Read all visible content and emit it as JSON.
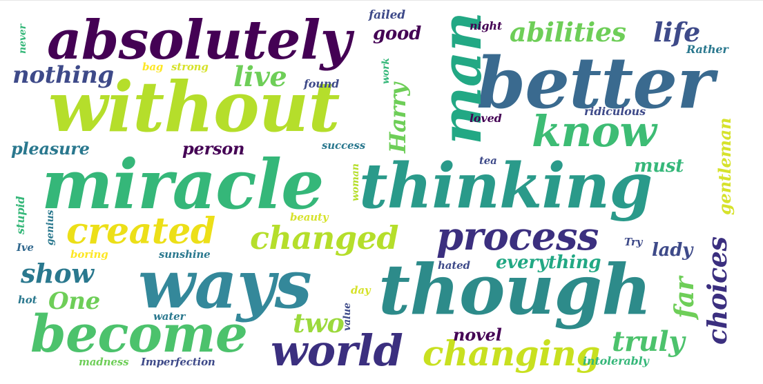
{
  "colors": {
    "dark_purple": "#440154",
    "indigo": "#3b2f7f",
    "slate_blue": "#3e4a89",
    "steel_blue": "#31688e",
    "teal_blue": "#26828e",
    "teal": "#1f9e89",
    "green_teal": "#35b779",
    "green": "#6ece58",
    "lime": "#b5de2b",
    "yellow": "#fde725"
  },
  "words": [
    {
      "text": "absolutely"
    },
    {
      "text": "without"
    },
    {
      "text": "miracle"
    },
    {
      "text": "thinking"
    },
    {
      "text": "better"
    },
    {
      "text": "though"
    },
    {
      "text": "ways"
    },
    {
      "text": "become"
    },
    {
      "text": "man"
    },
    {
      "text": "world"
    },
    {
      "text": "changing"
    },
    {
      "text": "created"
    },
    {
      "text": "changed"
    },
    {
      "text": "process"
    },
    {
      "text": "know"
    },
    {
      "text": "abilities"
    },
    {
      "text": "life"
    },
    {
      "text": "nothing"
    },
    {
      "text": "live"
    },
    {
      "text": "good"
    },
    {
      "text": "Harry"
    },
    {
      "text": "pleasure"
    },
    {
      "text": "person"
    },
    {
      "text": "show"
    },
    {
      "text": "One"
    },
    {
      "text": "two"
    },
    {
      "text": "truly"
    },
    {
      "text": "choices"
    },
    {
      "text": "far"
    },
    {
      "text": "everything"
    },
    {
      "text": "must"
    },
    {
      "text": "lady"
    },
    {
      "text": "novel"
    },
    {
      "text": "gentleman"
    },
    {
      "text": "failed"
    },
    {
      "text": "night"
    },
    {
      "text": "Rather"
    },
    {
      "text": "never"
    },
    {
      "text": "bag"
    },
    {
      "text": "strong"
    },
    {
      "text": "found"
    },
    {
      "text": "work"
    },
    {
      "text": "loved"
    },
    {
      "text": "ridiculous"
    },
    {
      "text": "success"
    },
    {
      "text": "tea"
    },
    {
      "text": "woman"
    },
    {
      "text": "stupid"
    },
    {
      "text": "genius"
    },
    {
      "text": "beauty"
    },
    {
      "text": "Ive"
    },
    {
      "text": "boring"
    },
    {
      "text": "sunshine"
    },
    {
      "text": "Try"
    },
    {
      "text": "hated"
    },
    {
      "text": "day"
    },
    {
      "text": "hot"
    },
    {
      "text": "water"
    },
    {
      "text": "value"
    },
    {
      "text": "madness"
    },
    {
      "text": "Imperfection"
    },
    {
      "text": "intolerably"
    }
  ]
}
